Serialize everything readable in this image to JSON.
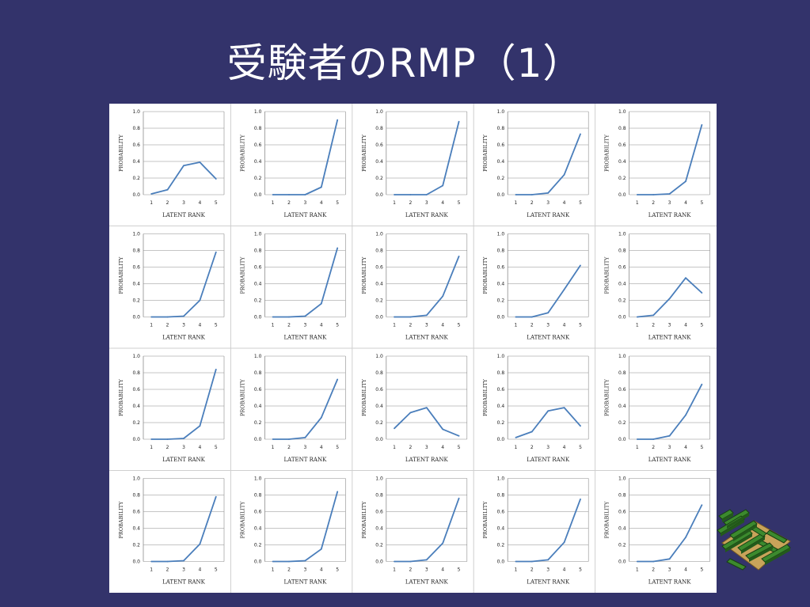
{
  "title": "受験者のRMP（1）",
  "colors": {
    "background": "#33336b",
    "line": "#4a7ebb",
    "panel": "#ffffff"
  },
  "chart_data": [
    {
      "type": "line",
      "x": [
        1,
        2,
        3,
        4,
        5
      ],
      "values": [
        0.01,
        0.06,
        0.35,
        0.39,
        0.19
      ],
      "xlabel": "LATENT RANK",
      "ylabel": "PROBABILITY",
      "ylim": [
        0,
        1.0
      ],
      "grid": true
    },
    {
      "type": "line",
      "x": [
        1,
        2,
        3,
        4,
        5
      ],
      "values": [
        0.0,
        0.0,
        0.0,
        0.09,
        0.9
      ],
      "xlabel": "LATENT RANK",
      "ylabel": "PROBABILITY",
      "ylim": [
        0,
        1.0
      ],
      "grid": true
    },
    {
      "type": "line",
      "x": [
        1,
        2,
        3,
        4,
        5
      ],
      "values": [
        0.0,
        0.0,
        0.0,
        0.11,
        0.88
      ],
      "xlabel": "LATENT RANK",
      "ylabel": "PROBABILITY",
      "ylim": [
        0,
        1.0
      ],
      "grid": true
    },
    {
      "type": "line",
      "x": [
        1,
        2,
        3,
        4,
        5
      ],
      "values": [
        0.0,
        0.0,
        0.02,
        0.24,
        0.73
      ],
      "xlabel": "LATENT RANK",
      "ylabel": "PROBABILITY",
      "ylim": [
        0,
        1.0
      ],
      "grid": true
    },
    {
      "type": "line",
      "x": [
        1,
        2,
        3,
        4,
        5
      ],
      "values": [
        0.0,
        0.0,
        0.01,
        0.16,
        0.84
      ],
      "xlabel": "LATENT RANK",
      "ylabel": "PROBABILITY",
      "ylim": [
        0,
        1.0
      ],
      "grid": true
    },
    {
      "type": "line",
      "x": [
        1,
        2,
        3,
        4,
        5
      ],
      "values": [
        0.0,
        0.0,
        0.01,
        0.2,
        0.78
      ],
      "xlabel": "LATENT RANK",
      "ylabel": "PROBABILITY",
      "ylim": [
        0,
        1.0
      ],
      "grid": true
    },
    {
      "type": "line",
      "x": [
        1,
        2,
        3,
        4,
        5
      ],
      "values": [
        0.0,
        0.0,
        0.01,
        0.16,
        0.83
      ],
      "xlabel": "LATENT RANK",
      "ylabel": "PROBABILITY",
      "ylim": [
        0,
        1.0
      ],
      "grid": true
    },
    {
      "type": "line",
      "x": [
        1,
        2,
        3,
        4,
        5
      ],
      "values": [
        0.0,
        0.0,
        0.02,
        0.25,
        0.73
      ],
      "xlabel": "LATENT RANK",
      "ylabel": "PROBABILITY",
      "ylim": [
        0,
        1.0
      ],
      "grid": true
    },
    {
      "type": "line",
      "x": [
        1,
        2,
        3,
        4,
        5
      ],
      "values": [
        0.0,
        0.0,
        0.05,
        0.33,
        0.62
      ],
      "xlabel": "LATENT RANK",
      "ylabel": "PROBABILITY",
      "ylim": [
        0,
        1.0
      ],
      "grid": true
    },
    {
      "type": "line",
      "x": [
        1,
        2,
        3,
        4,
        5
      ],
      "values": [
        0.0,
        0.02,
        0.22,
        0.47,
        0.29
      ],
      "xlabel": "LATENT RANK",
      "ylabel": "PROBABILITY",
      "ylim": [
        0,
        1.0
      ],
      "grid": true
    },
    {
      "type": "line",
      "x": [
        1,
        2,
        3,
        4,
        5
      ],
      "values": [
        0.0,
        0.0,
        0.01,
        0.16,
        0.84
      ],
      "xlabel": "LATENT RANK",
      "ylabel": "PROBABILITY",
      "ylim": [
        0,
        1.0
      ],
      "grid": true
    },
    {
      "type": "line",
      "x": [
        1,
        2,
        3,
        4,
        5
      ],
      "values": [
        0.0,
        0.0,
        0.02,
        0.26,
        0.72
      ],
      "xlabel": "LATENT RANK",
      "ylabel": "PROBABILITY",
      "ylim": [
        0,
        1.0
      ],
      "grid": true
    },
    {
      "type": "line",
      "x": [
        1,
        2,
        3,
        4,
        5
      ],
      "values": [
        0.13,
        0.32,
        0.38,
        0.12,
        0.04
      ],
      "xlabel": "LATENT RANK",
      "ylabel": "PROBABILITY",
      "ylim": [
        0,
        1.0
      ],
      "grid": true
    },
    {
      "type": "line",
      "x": [
        1,
        2,
        3,
        4,
        5
      ],
      "values": [
        0.02,
        0.09,
        0.34,
        0.38,
        0.16
      ],
      "xlabel": "LATENT RANK",
      "ylabel": "PROBABILITY",
      "ylim": [
        0,
        1.0
      ],
      "grid": true
    },
    {
      "type": "line",
      "x": [
        1,
        2,
        3,
        4,
        5
      ],
      "values": [
        0.0,
        0.0,
        0.04,
        0.29,
        0.66
      ],
      "xlabel": "LATENT RANK",
      "ylabel": "PROBABILITY",
      "ylim": [
        0,
        1.0
      ],
      "grid": true
    },
    {
      "type": "line",
      "x": [
        1,
        2,
        3,
        4,
        5
      ],
      "values": [
        0.0,
        0.0,
        0.01,
        0.21,
        0.78
      ],
      "xlabel": "LATENT RANK",
      "ylabel": "PROBABILITY",
      "ylim": [
        0,
        1.0
      ],
      "grid": true
    },
    {
      "type": "line",
      "x": [
        1,
        2,
        3,
        4,
        5
      ],
      "values": [
        0.0,
        0.0,
        0.01,
        0.15,
        0.84
      ],
      "xlabel": "LATENT RANK",
      "ylabel": "PROBABILITY",
      "ylim": [
        0,
        1.0
      ],
      "grid": true
    },
    {
      "type": "line",
      "x": [
        1,
        2,
        3,
        4,
        5
      ],
      "values": [
        0.0,
        0.0,
        0.02,
        0.22,
        0.76
      ],
      "xlabel": "LATENT RANK",
      "ylabel": "PROBABILITY",
      "ylim": [
        0,
        1.0
      ],
      "grid": true
    },
    {
      "type": "line",
      "x": [
        1,
        2,
        3,
        4,
        5
      ],
      "values": [
        0.0,
        0.0,
        0.02,
        0.23,
        0.75
      ],
      "xlabel": "LATENT RANK",
      "ylabel": "PROBABILITY",
      "ylim": [
        0,
        1.0
      ],
      "grid": true
    },
    {
      "type": "line",
      "x": [
        1,
        2,
        3,
        4,
        5
      ],
      "values": [
        0.0,
        0.0,
        0.03,
        0.29,
        0.68
      ],
      "xlabel": "LATENT RANK",
      "ylabel": "PROBABILITY",
      "ylim": [
        0,
        1.0
      ],
      "grid": true
    }
  ],
  "tick_labels": {
    "y": [
      "0.0",
      "0.2",
      "0.4",
      "0.6",
      "0.8",
      "1.0"
    ]
  },
  "decoration": {
    "corner_graphic": "maze-icon"
  }
}
